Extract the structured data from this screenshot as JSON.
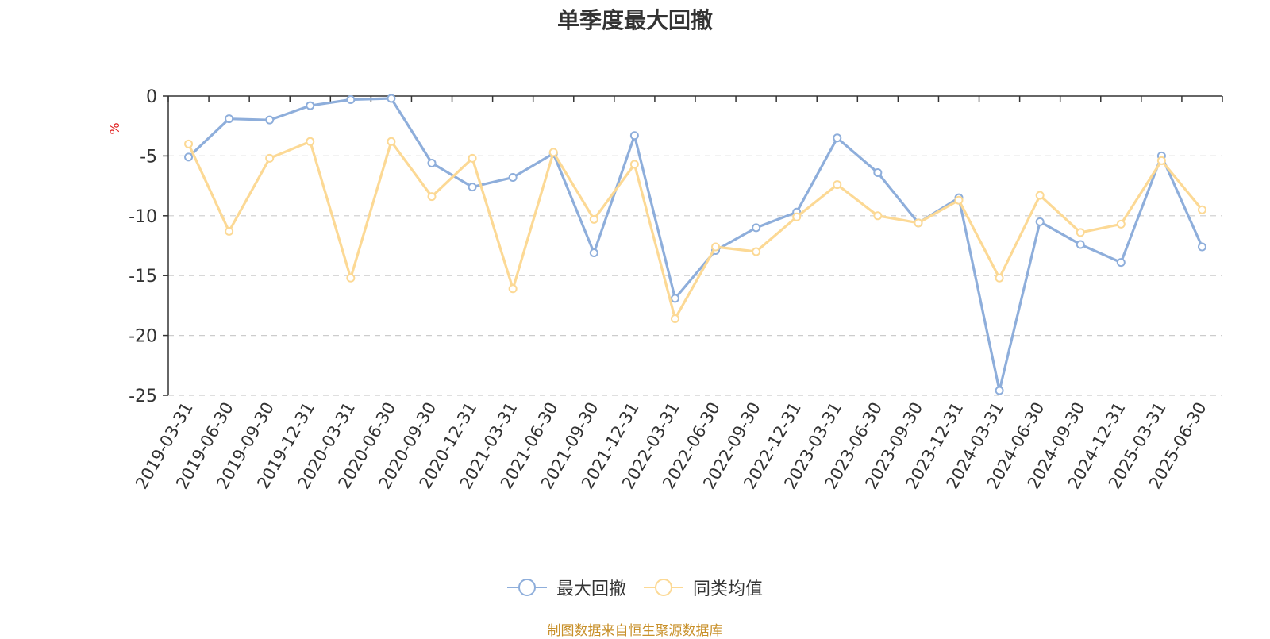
{
  "chart_data": {
    "type": "line",
    "title": "单季度最大回撤",
    "ylabel": "%",
    "xlabel": "",
    "ylim": [
      -25,
      0
    ],
    "yticks": [
      0,
      -5,
      -10,
      -15,
      -20,
      -25
    ],
    "grid": true,
    "legend_position": "bottom",
    "categories": [
      "2019-03-31",
      "2019-06-30",
      "2019-09-30",
      "2019-12-31",
      "2020-03-31",
      "2020-06-30",
      "2020-09-30",
      "2020-12-31",
      "2021-03-31",
      "2021-06-30",
      "2021-09-30",
      "2021-12-31",
      "2022-03-31",
      "2022-06-30",
      "2022-09-30",
      "2022-12-31",
      "2023-03-31",
      "2023-06-30",
      "2023-09-30",
      "2023-12-31",
      "2024-03-31",
      "2024-06-30",
      "2024-09-30",
      "2024-12-31",
      "2025-03-31",
      "2025-06-30"
    ],
    "series": [
      {
        "name": "最大回撤",
        "color": "#8eaedb",
        "values": [
          -5.1,
          -1.9,
          -2.0,
          -0.8,
          -0.3,
          -0.2,
          -5.6,
          -7.6,
          -6.8,
          -4.8,
          -13.1,
          -3.3,
          -16.9,
          -12.9,
          -11.0,
          -9.7,
          -3.5,
          -6.4,
          -10.6,
          -8.5,
          -24.6,
          -10.5,
          -12.4,
          -13.9,
          -5.0,
          -12.6
        ]
      },
      {
        "name": "同类均值",
        "color": "#fcd995",
        "values": [
          -4.0,
          -11.3,
          -5.2,
          -3.8,
          -15.2,
          -3.8,
          -8.4,
          -5.2,
          -16.1,
          -4.7,
          -10.3,
          -5.7,
          -18.6,
          -12.6,
          -13.0,
          -10.1,
          -7.4,
          -10.0,
          -10.6,
          -8.7,
          -15.2,
          -8.3,
          -11.4,
          -10.7,
          -5.4,
          -9.5
        ]
      }
    ]
  },
  "source_note": "制图数据来自恒生聚源数据库",
  "colors": {
    "title": "#333333",
    "axis_text": "#333333",
    "unit_label": "#e02020",
    "grid": "#cccccc",
    "source": "#c8902a"
  }
}
